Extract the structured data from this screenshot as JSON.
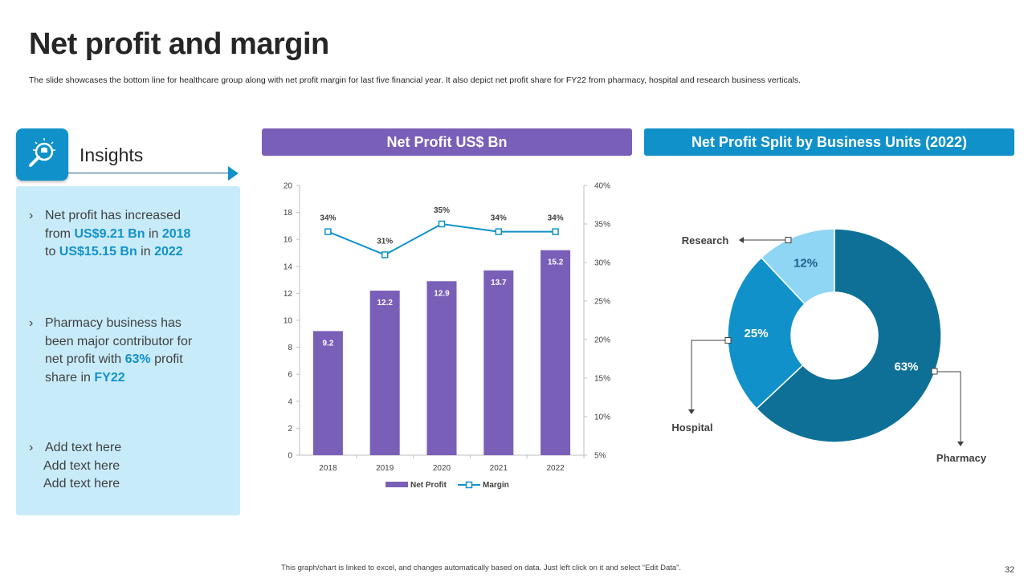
{
  "title": "Net profit and margin",
  "subtitle": "The slide showcases the bottom line for healthcare group along with net profit margin for last five financial year. It also depict net profit share for FY22 from pharmacy, hospital and research business verticals.",
  "insights": {
    "label": "Insights",
    "icon": "bulb-magnifier-icon",
    "bullet_char": "›",
    "b1": {
      "l1": "Net profit has increased",
      "l2a": "from ",
      "l2b": "US$9.21 Bn",
      "l2c": " in ",
      "l2d": "2018",
      "l3a": "to ",
      "l3b": "US$15.15 Bn",
      "l3c": " in ",
      "l3d": "2022"
    },
    "b2": {
      "l1": "Pharmacy business has",
      "l2": "been major contributor for",
      "l3a": "net profit with ",
      "l3b": "63%",
      "l3c": " profit",
      "l4a": "share in ",
      "l4b": "FY22"
    },
    "b3": {
      "l1": "Add text here",
      "l2": "Add text here",
      "l3": "Add text here"
    }
  },
  "left_header": "Net Profit US$ Bn",
  "right_header": "Net Profit Split by Business Units (2022)",
  "chart_data": [
    {
      "type": "bar",
      "title": "Net Profit US$ Bn",
      "categories": [
        "2018",
        "2019",
        "2020",
        "2021",
        "2022"
      ],
      "series": [
        {
          "name": "Net Profit",
          "chart": "bar",
          "axis": "left",
          "values": [
            9.2,
            12.2,
            12.9,
            13.7,
            15.2
          ]
        },
        {
          "name": "Margin",
          "chart": "line",
          "axis": "right",
          "values": [
            34,
            31,
            35,
            34,
            34
          ],
          "labels": [
            "34%",
            "31%",
            "35%",
            "34%",
            "34%"
          ]
        }
      ],
      "y_left": {
        "min": 0,
        "max": 20,
        "ticks": [
          "0",
          "2",
          "4",
          "6",
          "8",
          "10",
          "12",
          "14",
          "16",
          "18",
          "20"
        ]
      },
      "y_right": {
        "min": 5,
        "max": 40,
        "ticks": [
          "5%",
          "10%",
          "15%",
          "20%",
          "25%",
          "30%",
          "35%",
          "40%"
        ]
      },
      "legend": {
        "bar": "Net Profit",
        "line": "Margin",
        "position": "bottom"
      },
      "colors": {
        "bar": "#7a5fb8",
        "line": "#1191c9"
      }
    },
    {
      "type": "pie",
      "subtype": "donut",
      "title": "Net Profit Split by Business Units (2022)",
      "slices": [
        {
          "label": "Pharmacy",
          "value": 63,
          "display": "63%",
          "color": "#0e7096"
        },
        {
          "label": "Hospital",
          "value": 25,
          "display": "25%",
          "color": "#1191c9"
        },
        {
          "label": "Research",
          "value": 12,
          "display": "12%",
          "color": "#8fd5f4"
        }
      ]
    }
  ],
  "footer": "This graph/chart is linked to excel, and changes automatically based on data. Just left click on it and select “Edit Data”.",
  "page_number": "32"
}
